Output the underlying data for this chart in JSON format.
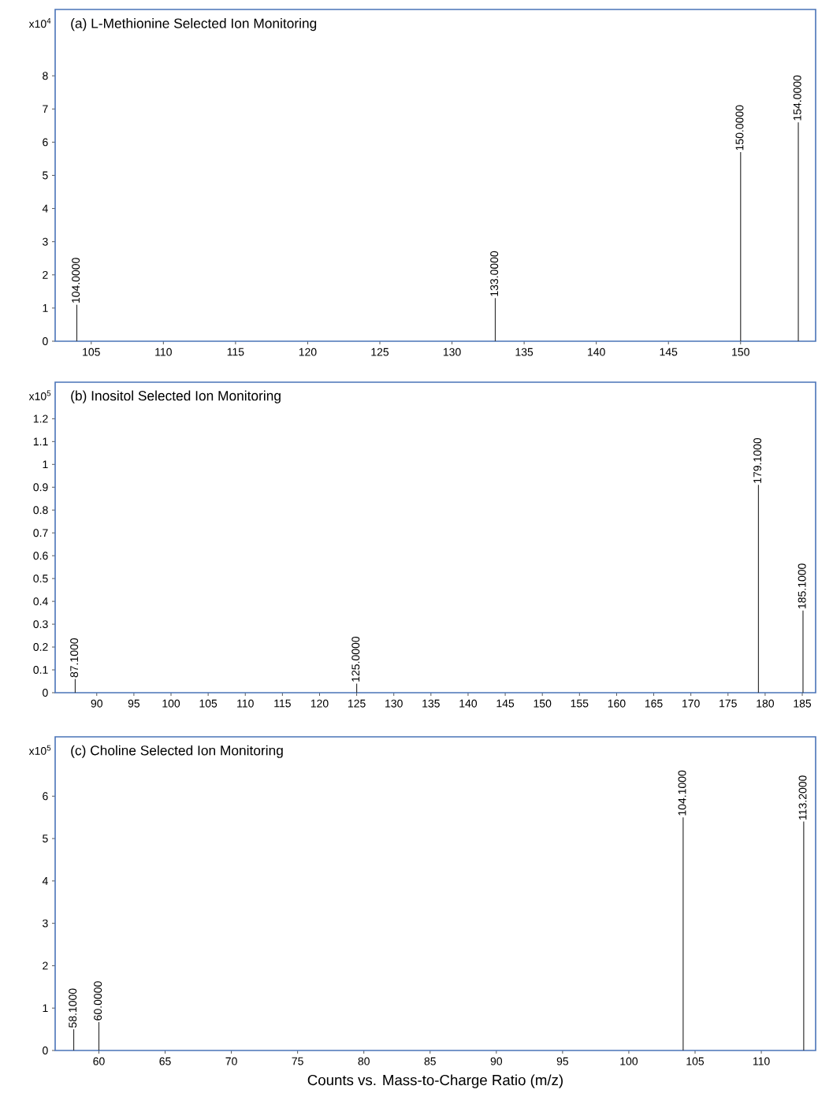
{
  "chart_data": [
    {
      "type": "bar",
      "title": "(a) L-Methionine Selected Ion Monitoring",
      "ylabel": "x10$^{4}$",
      "color": "#333333",
      "x": [
        104.0,
        133.0,
        150.0,
        154.0
      ],
      "values": [
        1.1,
        1.3,
        5.7,
        6.6
      ],
      "annotations": [
        {
          "text": "104.0000",
          "x": 104.0,
          "y": 1.1
        },
        {
          "text": "133.0000",
          "x": 133.0,
          "y": 1.3
        },
        {
          "text": "150.0000",
          "x": 150.0,
          "y": 5.7
        },
        {
          "text": "154.0000",
          "x": 154.0,
          "y": 6.6
        }
      ],
      "xlim": [
        102.5,
        155.2
      ],
      "ylim": [
        0,
        10
      ],
      "xticks": [
        105,
        110,
        115,
        120,
        125,
        130,
        135,
        140,
        145,
        150
      ],
      "yticks": [
        0,
        1,
        2,
        3,
        4,
        5,
        6,
        7,
        8
      ]
    },
    {
      "type": "bar",
      "title": "(b) Inositol Selected Ion Monitoring",
      "ylabel": "x10$^{5}$",
      "color": "#333333",
      "x": [
        87.1,
        125.0,
        179.1,
        185.1
      ],
      "values": [
        0.06,
        0.04,
        0.91,
        0.36
      ],
      "annotations": [
        {
          "text": "87.1000",
          "x": 87.1,
          "y": 0.06
        },
        {
          "text": "125.0000",
          "x": 125.0,
          "y": 0.04
        },
        {
          "text": "179.1000",
          "x": 179.1,
          "y": 0.91
        },
        {
          "text": "185.1000",
          "x": 185.1,
          "y": 0.36
        }
      ],
      "xlim": [
        84.4,
        186.8
      ],
      "ylim": [
        0,
        1.36
      ],
      "xticks": [
        90,
        95,
        100,
        105,
        110,
        115,
        120,
        125,
        130,
        135,
        140,
        145,
        150,
        155,
        160,
        165,
        170,
        175,
        180,
        185
      ],
      "yticks": [
        0,
        0.1,
        0.2,
        0.3,
        0.4,
        0.5,
        0.6,
        0.7,
        0.8,
        0.9,
        1,
        1.1,
        1.2
      ]
    },
    {
      "type": "bar",
      "title": "(c) Choline Selected Ion Monitoring",
      "ylabel": "x10$^{5}$",
      "xlabel": "Counts vs. Mass-to-Charge Ratio (m/z)",
      "color": "#333333",
      "x": [
        58.1,
        60.0,
        104.1,
        113.2
      ],
      "values": [
        0.5,
        0.67,
        5.5,
        5.4
      ],
      "annotations": [
        {
          "text": "58.1000",
          "x": 58.1,
          "y": 0.5
        },
        {
          "text": "60.0000",
          "x": 60.0,
          "y": 0.67
        },
        {
          "text": "104.1000",
          "x": 104.1,
          "y": 5.5
        },
        {
          "text": "113.2000",
          "x": 113.2,
          "y": 5.4
        }
      ],
      "xlim": [
        56.7,
        114.1
      ],
      "ylim": [
        0,
        7.4
      ],
      "xticks": [
        60,
        65,
        70,
        75,
        80,
        85,
        90,
        95,
        100,
        105,
        110
      ],
      "yticks": [
        0,
        1,
        2,
        3,
        4,
        5,
        6
      ]
    }
  ]
}
